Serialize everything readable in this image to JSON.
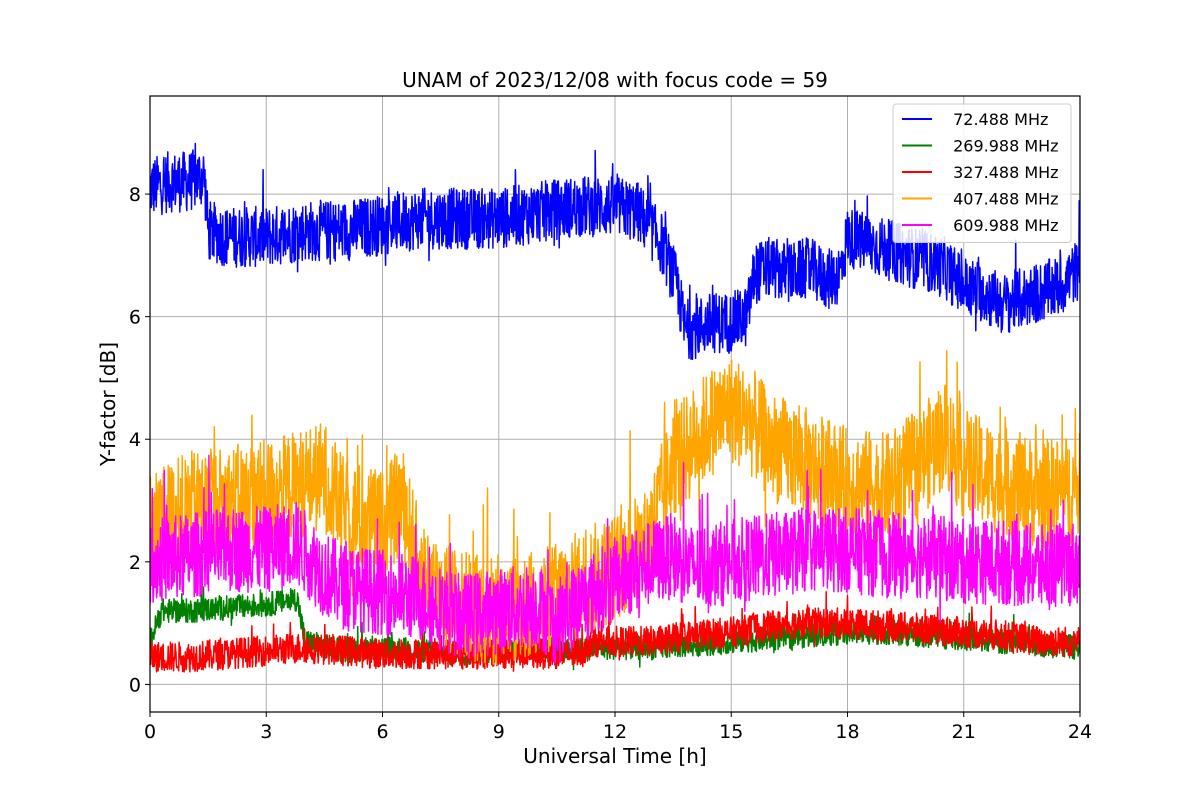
{
  "chart_data": {
    "type": "line",
    "title": "UNAM of 2023/12/08 with focus code = 59",
    "xlabel": "Universal Time [h]",
    "ylabel": "Y-factor [dB]",
    "xlim": [
      0,
      24
    ],
    "ylim": [
      -0.45,
      9.6
    ],
    "xticks": [
      0,
      3,
      6,
      9,
      12,
      15,
      18,
      21,
      24
    ],
    "yticks": [
      0,
      2,
      4,
      6,
      8
    ],
    "grid": true,
    "legend_position": "top-right",
    "series": [
      {
        "name": " 72.488 MHz",
        "color": "#0000ff",
        "x": [
          0,
          0.5,
          1,
          1.4,
          1.5,
          2,
          3,
          4,
          5,
          6,
          7,
          8,
          9,
          10,
          11,
          12,
          12.6,
          13.2,
          13.6,
          13.8,
          14,
          14.5,
          15,
          15.4,
          15.6,
          16,
          16.5,
          17,
          17.5,
          17.8,
          18,
          19,
          20,
          20.5,
          21,
          21.5,
          22,
          22.5,
          23,
          23.5,
          24
        ],
        "y": [
          8.1,
          8.2,
          8.2,
          8.3,
          7.4,
          7.3,
          7.3,
          7.4,
          7.4,
          7.5,
          7.6,
          7.6,
          7.6,
          7.7,
          7.8,
          7.8,
          7.7,
          7.2,
          6.5,
          5.8,
          5.8,
          5.9,
          5.9,
          6.0,
          6.7,
          6.8,
          6.7,
          6.8,
          6.6,
          6.7,
          7.3,
          7.1,
          6.9,
          6.8,
          6.5,
          6.4,
          6.2,
          6.3,
          6.4,
          6.5,
          6.8
        ],
        "noise": 0.5
      },
      {
        "name": " 269.988 MHz",
        "color": "#008000",
        "x": [
          0,
          0.3,
          1,
          2,
          3,
          3.8,
          4,
          5,
          6,
          7,
          8,
          9,
          10,
          11,
          11.5,
          12,
          13,
          14,
          15,
          16,
          17,
          18,
          19,
          20,
          21,
          22,
          23,
          24
        ],
        "y": [
          0.7,
          1.2,
          1.2,
          1.25,
          1.3,
          1.4,
          0.7,
          0.55,
          0.6,
          0.55,
          0.5,
          0.55,
          0.55,
          0.55,
          0.6,
          0.6,
          0.6,
          0.65,
          0.7,
          0.75,
          0.8,
          0.85,
          0.85,
          0.8,
          0.75,
          0.7,
          0.65,
          0.6
        ],
        "noise": 0.2
      },
      {
        "name": " 327.488 MHz",
        "color": "#ff0000",
        "x": [
          0,
          1,
          2,
          3,
          4,
          5,
          6,
          7,
          8,
          9,
          10,
          11,
          11.5,
          12,
          13,
          14,
          15,
          16,
          17,
          18,
          19,
          20,
          21,
          22,
          23,
          24
        ],
        "y": [
          0.45,
          0.45,
          0.5,
          0.55,
          0.6,
          0.55,
          0.5,
          0.5,
          0.5,
          0.5,
          0.5,
          0.5,
          0.7,
          0.7,
          0.7,
          0.8,
          0.85,
          0.95,
          1.0,
          1.0,
          0.95,
          0.9,
          0.85,
          0.8,
          0.7,
          0.7
        ],
        "noise": 0.25
      },
      {
        "name": " 407.488 MHz",
        "color": "#ffa500",
        "x": [
          0,
          1,
          2,
          3,
          4,
          4.5,
          5,
          6,
          6.5,
          7,
          8,
          9,
          10,
          11,
          12,
          12.8,
          13.5,
          14.5,
          15,
          15.5,
          16,
          17,
          18,
          19,
          20,
          20.5,
          21,
          22,
          23,
          24
        ],
        "y": [
          2.6,
          2.9,
          3.0,
          3.1,
          3.3,
          3.4,
          2.8,
          2.6,
          3.0,
          1.8,
          1.3,
          1.2,
          1.3,
          1.6,
          1.9,
          2.3,
          3.6,
          4.3,
          4.5,
          4.3,
          3.9,
          3.6,
          3.3,
          3.2,
          3.7,
          4.1,
          3.6,
          3.3,
          3.1,
          3.2
        ],
        "noise": 0.9
      },
      {
        "name": " 609.988 MHz",
        "color": "#ff00ff",
        "x": [
          0,
          1,
          2,
          3,
          3.8,
          4.5,
          5,
          6,
          7,
          8,
          9,
          10,
          10.5,
          11,
          12,
          13,
          13.5,
          14,
          15,
          16,
          17,
          18,
          19,
          20,
          21,
          22,
          23,
          24
        ],
        "y": [
          2.0,
          2.1,
          2.2,
          2.2,
          2.3,
          1.8,
          1.6,
          1.5,
          1.4,
          1.1,
          1.2,
          1.3,
          1.0,
          1.3,
          1.7,
          2.0,
          2.1,
          1.9,
          2.0,
          2.1,
          2.2,
          2.2,
          2.1,
          2.1,
          2.0,
          2.0,
          1.9,
          2.0
        ],
        "noise": 0.7
      }
    ]
  }
}
